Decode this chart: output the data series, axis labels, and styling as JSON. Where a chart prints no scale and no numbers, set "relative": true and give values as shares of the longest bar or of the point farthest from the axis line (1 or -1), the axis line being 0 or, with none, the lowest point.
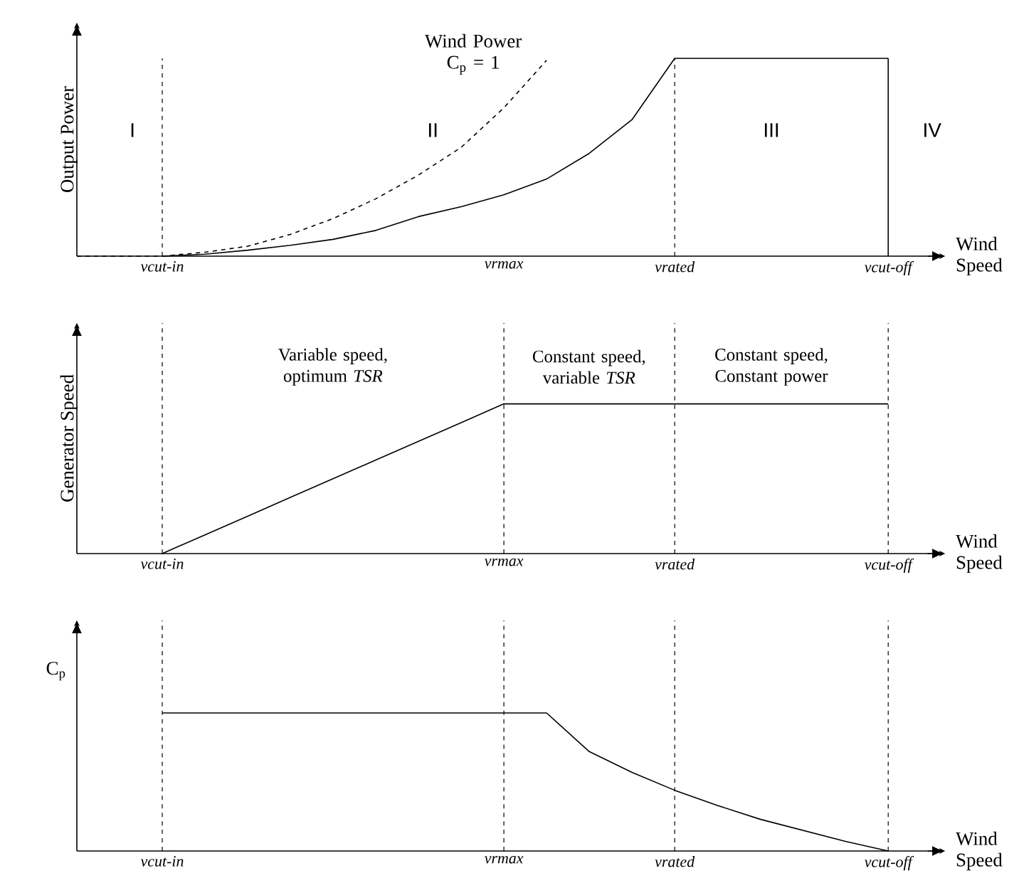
{
  "chart_data": [
    {
      "type": "line",
      "relative": true,
      "ylabel": "Output Power",
      "xlabel": "Wind Speed",
      "categories": [
        null,
        null,
        "vcut-in",
        null,
        null,
        null,
        null,
        null,
        null,
        null,
        "vrmax",
        null,
        null,
        null,
        "vrated",
        null,
        null,
        null,
        null,
        "vcut-off"
      ],
      "ref_lines": [
        {
          "axis": "x",
          "value": "vcut-in",
          "line_style": "dashed"
        },
        {
          "axis": "x",
          "value": "vrated",
          "line_style": "dashed"
        },
        {
          "axis": "x",
          "value": "vcut-off",
          "line_style": "solid"
        }
      ],
      "annotations": [
        "I",
        "II",
        "III",
        "IV"
      ],
      "series": [
        {
          "color": "#000000",
          "line_style": "solid",
          "values": [
            null,
            null,
            0,
            0.01,
            0.03,
            0.055,
            0.085,
            0.13,
            0.2,
            0.25,
            0.31,
            0.39,
            0.52,
            0.69,
            1.0,
            1.0,
            1.0,
            1.0,
            1.0,
            1.0
          ]
        },
        {
          "name": "Wind Power C$_{p}$ = 1",
          "color": "#000000",
          "line_style": "dashed",
          "values": [
            0,
            0,
            0,
            0.02,
            0.05,
            0.11,
            0.19,
            0.29,
            0.41,
            0.55,
            0.75,
            0.99,
            null,
            null,
            null,
            null,
            null,
            null,
            null,
            null
          ]
        }
      ]
    },
    {
      "type": "line",
      "relative": true,
      "ylabel": "Generator Speed",
      "xlabel": "Wind Speed",
      "categories": [
        null,
        null,
        "vcut-in",
        null,
        null,
        null,
        null,
        null,
        null,
        null,
        "vrmax",
        null,
        null,
        null,
        "vrated",
        null,
        null,
        null,
        null,
        "vcut-off"
      ],
      "grid": "x",
      "annotations": [
        "Variable speed, optimum *TSR*",
        "Constant speed, variable *TSR*",
        "Constant speed, Constant power"
      ],
      "series": [
        {
          "color": "#000000",
          "line_style": "solid",
          "values": [
            null,
            null,
            0,
            0.125,
            0.25,
            0.375,
            0.5,
            0.625,
            0.75,
            0.875,
            1,
            1,
            1,
            1,
            1,
            1,
            1,
            1,
            1,
            1
          ]
        }
      ]
    },
    {
      "type": "line",
      "relative": true,
      "ylabel": "C$_{p}$",
      "xlabel": "Wind Speed",
      "categories": [
        null,
        null,
        "vcut-in",
        null,
        null,
        null,
        null,
        null,
        null,
        null,
        "vrmax",
        null,
        null,
        null,
        "vrated",
        null,
        null,
        null,
        null,
        "vcut-off"
      ],
      "grid": "x",
      "series": [
        {
          "color": "#000000",
          "line_style": "solid",
          "values": [
            null,
            null,
            1,
            1,
            1,
            1,
            1,
            1,
            1,
            1,
            1,
            1,
            0.72,
            0.57,
            0.44,
            0.33,
            0.23,
            0.15,
            0.07,
            0
          ]
        }
      ]
    }
  ]
}
